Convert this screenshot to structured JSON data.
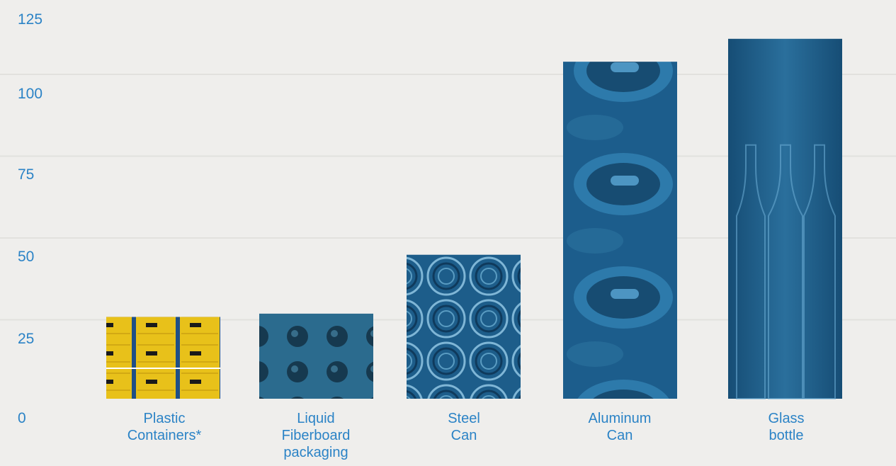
{
  "chart_data": {
    "type": "bar",
    "categories": [
      "Plastic Containers*",
      "Liquid Fiberboard packaging",
      "Steel Can",
      "Aluminum Can",
      "Glass bottle"
    ],
    "category_lines": [
      [
        "Plastic",
        "Containers*"
      ],
      [
        "Liquid",
        "Fiberboard",
        "packaging"
      ],
      [
        "Steel",
        "Can"
      ],
      [
        "Aluminum",
        "Can"
      ],
      [
        "Glass",
        "bottle"
      ]
    ],
    "values": [
      25,
      26,
      44,
      103,
      110
    ],
    "yticks": [
      "0",
      "25",
      "50",
      "75",
      "100",
      "125"
    ],
    "ylim": [
      0,
      125
    ],
    "grid": true,
    "colors": {
      "background": "#efeeec",
      "tick_text": "#2b83c6",
      "gridline": "#e2e1de",
      "plastic_bar": "#e8c11a",
      "plastic_stripe": "#1f4f86",
      "bar_photo_tint": "#1c5d8c",
      "bar_photo_dark": "#0e3a5c"
    },
    "bar_images": [
      "yellow-plastic-crates-photo",
      "milk-carton-caps-photo",
      "steel-cans-photo",
      "aluminum-cans-photo",
      "glass-bottles-photo"
    ]
  }
}
